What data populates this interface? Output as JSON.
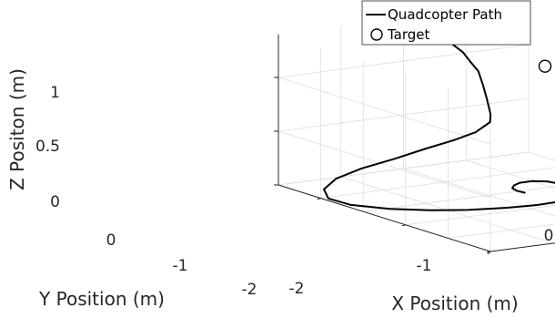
{
  "chart_data": {
    "type": "line",
    "title": "",
    "xlabel": "X Position (m)",
    "ylabel": "Y Position (m)",
    "zlabel": "Z Positon (m)",
    "xlim": [
      -2,
      0
    ],
    "ylim": [
      -2,
      0.5
    ],
    "zlim": [
      0,
      1.4
    ],
    "x_ticks": [
      "-2",
      "-1",
      "0"
    ],
    "y_ticks": [
      "0",
      "-1",
      "-2"
    ],
    "z_ticks": [
      "0",
      "0.5",
      "1"
    ],
    "grid": true,
    "legend_position": "top-right",
    "series": [
      {
        "name": "Quadcopter Path",
        "style": "line",
        "color": "#000000",
        "x": [
          -0.78,
          -0.63,
          -0.54,
          -0.49,
          -0.48,
          -0.47,
          -0.46,
          -0.45,
          -0.44,
          -0.45,
          -0.56,
          -0.7,
          -0.88,
          -1.1,
          -1.37,
          -1.62,
          -1.84,
          -1.96,
          -1.95,
          -1.8,
          -1.6,
          -1.38,
          -1.12,
          -0.9,
          -0.72,
          -0.58,
          -0.48,
          -0.42,
          -0.39,
          -0.42,
          -0.5,
          -0.6,
          -0.68,
          -0.74,
          -0.76,
          -0.75
        ],
        "y": [
          0.55,
          0.6,
          0.6,
          0.55,
          0.48,
          0.4,
          0.36,
          0.33,
          0.3,
          0.29,
          0.3,
          0.36,
          0.41,
          0.45,
          0.45,
          0.38,
          0.2,
          -0.03,
          -0.28,
          -0.52,
          -0.7,
          -0.82,
          -0.9,
          -0.93,
          -0.92,
          -0.86,
          -0.74,
          -0.6,
          -0.46,
          -0.34,
          -0.28,
          -0.28,
          -0.33,
          -0.4,
          -0.48,
          -0.56
        ],
        "z": [
          1.2,
          1.14,
          1.06,
          0.99,
          0.92,
          0.85,
          0.73,
          0.61,
          0.47,
          0.4,
          0.32,
          0.25,
          0.19,
          0.12,
          0.07,
          0.03,
          0.01,
          0.0,
          0.0,
          0.0,
          0.0,
          0.0,
          0.0,
          0.0,
          0.0,
          0.0,
          0.0,
          0.0,
          0.0,
          0.0,
          0.0,
          0.0,
          0.0,
          0.0,
          0.0,
          0.0
        ]
      },
      {
        "name": "Target",
        "style": "marker",
        "marker": "circle",
        "color": "#000000",
        "x": [
          -0.14
        ],
        "y": [
          0.1
        ],
        "z": [
          0.92
        ]
      }
    ]
  }
}
